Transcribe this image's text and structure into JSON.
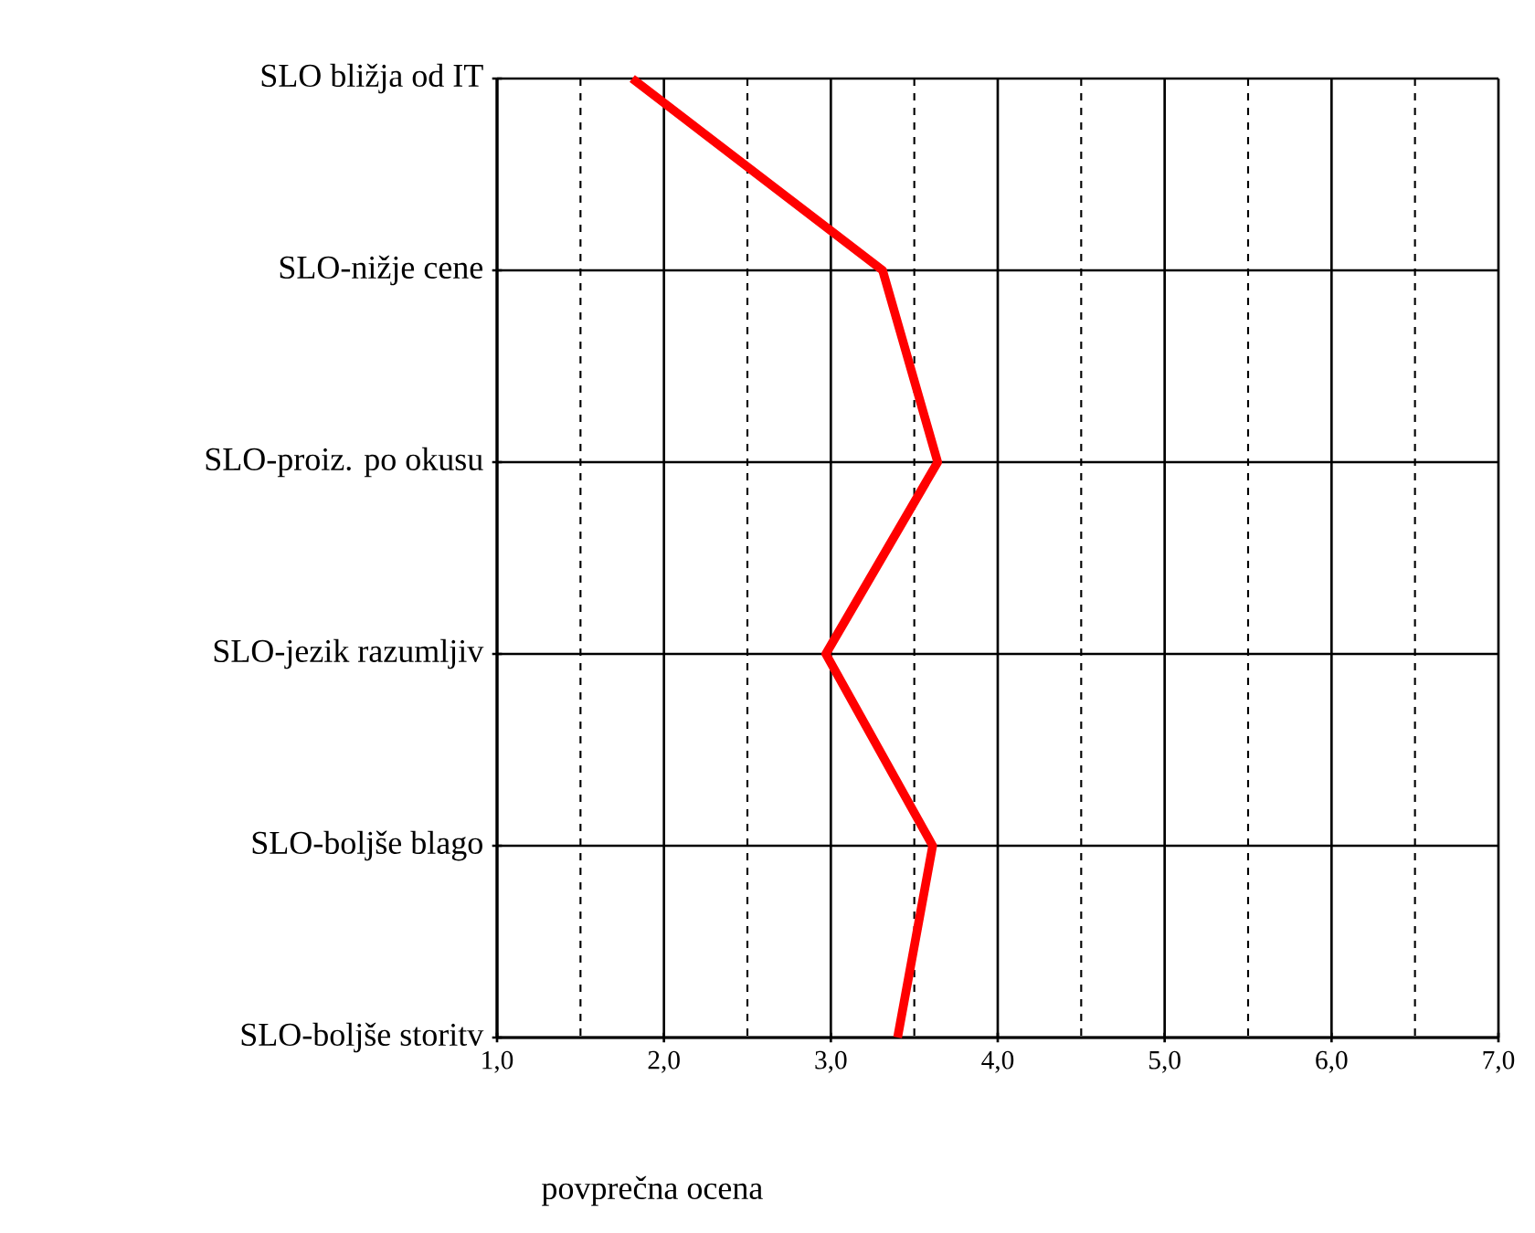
{
  "chart_data": {
    "type": "line",
    "orientation": "horizontal",
    "xlabel": "povprečna ocena",
    "categories": [
      "SLO bližja od IT",
      "SLO-nižje cene",
      "SLO-proiz. po okusu",
      "SLO-jezik razumljiv",
      "SLO-boljše blago",
      "SLO-boljše storitv"
    ],
    "series": [
      {
        "color": "#ff0000",
        "values": [
          1.81,
          3.31,
          3.64,
          2.97,
          3.61,
          3.4
        ]
      }
    ],
    "xlim": [
      1,
      7
    ],
    "xticks": [
      {
        "value": 1,
        "label": "1,0"
      },
      {
        "value": 1.5,
        "label": null
      },
      {
        "value": 2,
        "label": "2,0"
      },
      {
        "value": 2.5,
        "label": null
      },
      {
        "value": 3,
        "label": "3,0"
      },
      {
        "value": 3.5,
        "label": null
      },
      {
        "value": 4,
        "label": "4,0"
      },
      {
        "value": 4.5,
        "label": null
      },
      {
        "value": 5,
        "label": "5,0"
      },
      {
        "value": 5.5,
        "label": null
      },
      {
        "value": 6,
        "label": "6,0"
      },
      {
        "value": 6.5,
        "label": null
      },
      {
        "value": 7,
        "label": "7,0"
      }
    ],
    "grid": true,
    "marker": "none",
    "line_style": "solid"
  }
}
